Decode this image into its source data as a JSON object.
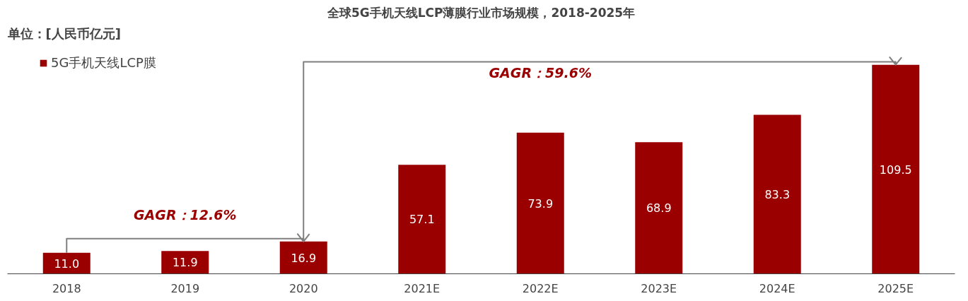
{
  "chart_data": {
    "type": "bar",
    "title": "全球5G手机天线LCP薄膜行业市场规模，2018-2025年",
    "categories": [
      "2018",
      "2019",
      "2020",
      "2021E",
      "2022E",
      "2023E",
      "2024E",
      "2025E"
    ],
    "series": [
      {
        "name": "5G手机天线LCP膜",
        "color": "#9b0000",
        "values": [
          11.0,
          11.9,
          16.9,
          57.1,
          73.9,
          68.9,
          83.3,
          109.5
        ],
        "value_labels": [
          "11.0",
          "11.9",
          "16.9",
          "57.1",
          "73.9",
          "68.9",
          "83.3",
          "109.5"
        ]
      }
    ],
    "legend": "top left",
    "grid": false,
    "annotations": [
      "单位：[人民币亿元]",
      "GAGR：12.6%",
      "GAGR：59.6%"
    ]
  }
}
